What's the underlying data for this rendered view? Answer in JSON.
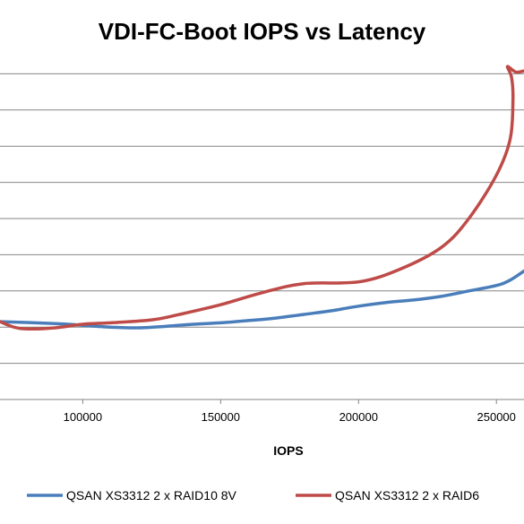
{
  "chart_data": {
    "type": "line",
    "title": "VDI-FC-Boot IOPS vs Latency",
    "xlabel": "IOPS",
    "ylabel": "",
    "xlim": [
      70000,
      260000
    ],
    "ylim": [
      0,
      10
    ],
    "x_ticks": [
      100000,
      150000,
      200000,
      250000
    ],
    "x_tick_labels": [
      "100000",
      "150000",
      "200000",
      "250000"
    ],
    "y_gridlines": [
      1,
      2,
      3,
      4,
      5,
      6,
      7,
      8,
      9
    ],
    "grid": true,
    "legend_position": "bottom",
    "series": [
      {
        "name": "QSAN XS3312 2 x RAID10 8V",
        "color": "#4a7ebb",
        "points": [
          [
            70000,
            2.15
          ],
          [
            90000,
            2.1
          ],
          [
            100000,
            2.05
          ],
          [
            110000,
            2.0
          ],
          [
            120000,
            1.98
          ],
          [
            130000,
            2.02
          ],
          [
            140000,
            2.08
          ],
          [
            150000,
            2.12
          ],
          [
            160000,
            2.18
          ],
          [
            170000,
            2.25
          ],
          [
            180000,
            2.35
          ],
          [
            190000,
            2.45
          ],
          [
            200000,
            2.58
          ],
          [
            210000,
            2.68
          ],
          [
            220000,
            2.75
          ],
          [
            230000,
            2.85
          ],
          [
            240000,
            3.0
          ],
          [
            250000,
            3.15
          ],
          [
            255000,
            3.3
          ],
          [
            260000,
            3.55
          ]
        ]
      },
      {
        "name": "QSAN XS3312 2 x RAID6",
        "color": "#be4b48",
        "points": [
          [
            70000,
            2.15
          ],
          [
            75000,
            2.0
          ],
          [
            80000,
            1.95
          ],
          [
            90000,
            1.98
          ],
          [
            100000,
            2.08
          ],
          [
            110000,
            2.12
          ],
          [
            125000,
            2.2
          ],
          [
            135000,
            2.35
          ],
          [
            150000,
            2.62
          ],
          [
            165000,
            2.95
          ],
          [
            180000,
            3.2
          ],
          [
            200000,
            3.25
          ],
          [
            215000,
            3.6
          ],
          [
            230000,
            4.2
          ],
          [
            240000,
            5.0
          ],
          [
            250000,
            6.2
          ],
          [
            255000,
            7.2
          ],
          [
            256000,
            8.3
          ],
          [
            255500,
            8.9
          ],
          [
            254000,
            9.2
          ],
          [
            257000,
            9.05
          ],
          [
            260000,
            9.08
          ]
        ]
      }
    ]
  }
}
